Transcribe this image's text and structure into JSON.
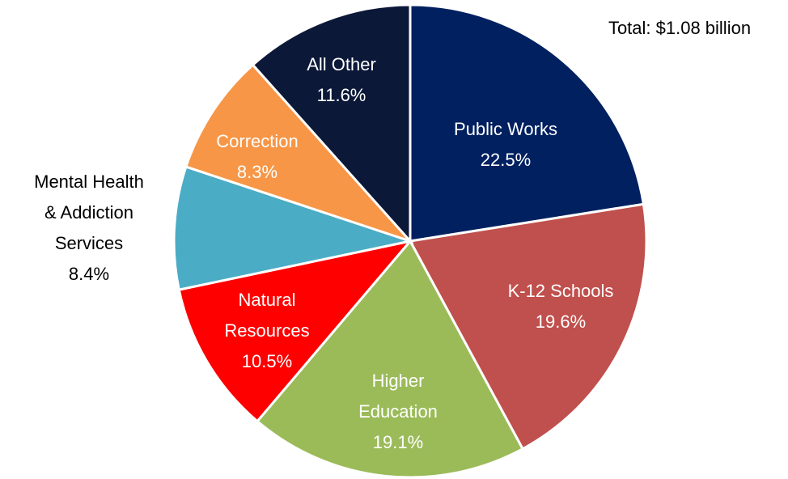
{
  "chart_data": {
    "type": "pie",
    "annotation": "Total: $1.08 billion",
    "categories": [
      "Public Works",
      "K-12 Schools",
      "Higher\nEducation",
      "Natural\nResources",
      "Mental Health\n& Addiction\nServices",
      "Correction",
      "All Other"
    ],
    "values": [
      22.5,
      19.6,
      19.1,
      10.5,
      8.4,
      8.3,
      11.6
    ],
    "value_labels": [
      "22.5%",
      "19.6%",
      "19.1%",
      "10.5%",
      "8.4%",
      "8.3%",
      "11.6%"
    ],
    "colors": [
      "#002060",
      "#c0504d",
      "#9bbb59",
      "#ff0000",
      "#4bacc6",
      "#f79646",
      "#0c1838"
    ]
  }
}
